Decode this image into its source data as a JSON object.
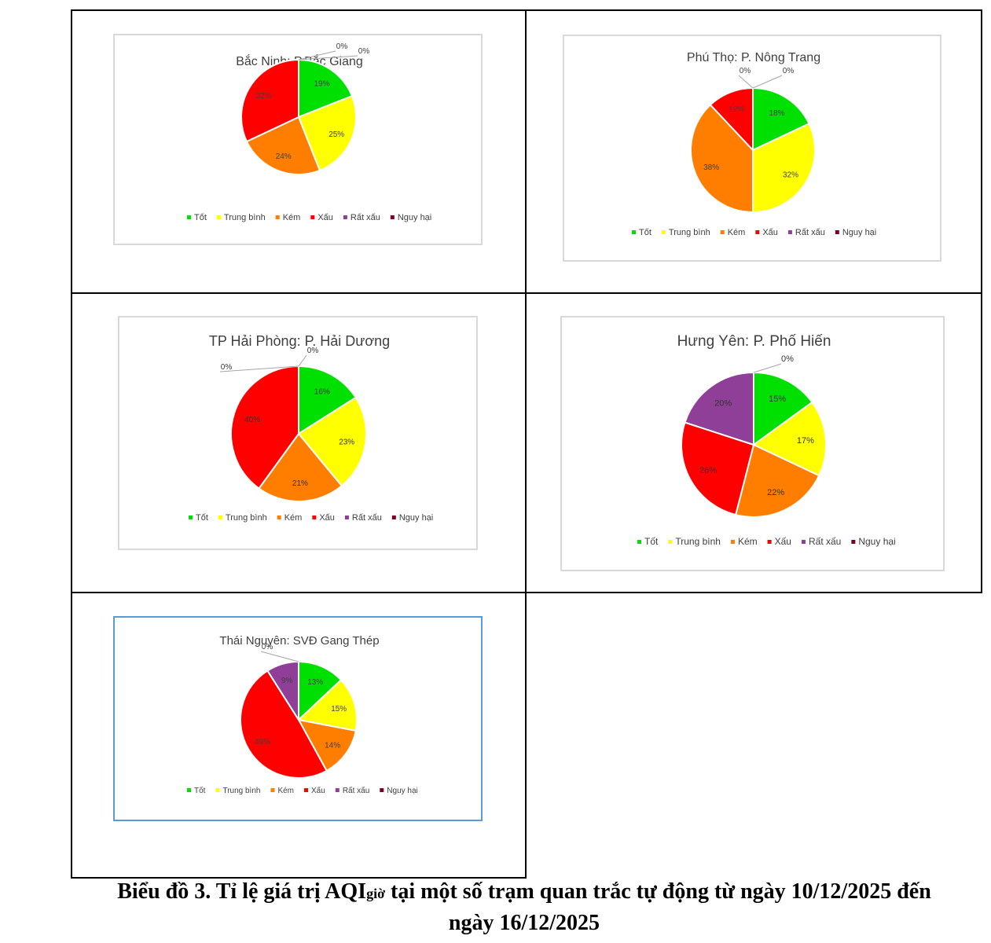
{
  "legend_labels": [
    "Tốt",
    "Trung bình",
    "Kém",
    "Xấu",
    "Rất xấu",
    "Nguy hại"
  ],
  "colors": {
    "tot": "#00e000",
    "trung_binh": "#ffff00",
    "kem": "#ff7e00",
    "xau": "#ff0000",
    "rat_xau": "#8f3f97",
    "nguy_hai": "#7e0023"
  },
  "caption": {
    "prefix": "Biểu đồ 3.  Tỉ lệ giá trị AQI",
    "subscript": "giờ",
    "suffix": " tại một số trạm quan trắc tự động từ ngày 10/12/2025 đến",
    "line2": "ngày 16/12/2025"
  },
  "chart_data": [
    {
      "type": "pie",
      "title": "Bắc Ninh: P.Bắc Giang",
      "categories": [
        "Tốt",
        "Trung bình",
        "Kém",
        "Xấu",
        "Rất xấu",
        "Nguy hại"
      ],
      "values": [
        19,
        25,
        24,
        32,
        0,
        0
      ],
      "data_labels": [
        "19%",
        "25%",
        "24%",
        "32%",
        "0%",
        "0%"
      ],
      "legend": "bottom"
    },
    {
      "type": "pie",
      "title": "Phú Thọ: P. Nông Trang",
      "categories": [
        "Tốt",
        "Trung bình",
        "Kém",
        "Xấu",
        "Rất xấu",
        "Nguy hại"
      ],
      "values": [
        18,
        32,
        38,
        12,
        0,
        0
      ],
      "data_labels": [
        "18%",
        "32%",
        "38%",
        "12%",
        "0%",
        "0%"
      ],
      "legend": "bottom"
    },
    {
      "type": "pie",
      "title": "TP Hải Phòng: P. Hải Dương",
      "categories": [
        "Tốt",
        "Trung bình",
        "Kém",
        "Xấu",
        "Rất xấu",
        "Nguy hại"
      ],
      "values": [
        16,
        23,
        21,
        40,
        0,
        0
      ],
      "data_labels": [
        "16%",
        "23%",
        "21%",
        "40%",
        "0%",
        "0%"
      ],
      "legend": "bottom"
    },
    {
      "type": "pie",
      "title": "Hưng Yên: P. Phố Hiến",
      "categories": [
        "Tốt",
        "Trung bình",
        "Kém",
        "Xấu",
        "Rất xấu",
        "Nguy hại"
      ],
      "values": [
        15,
        17,
        22,
        26,
        20,
        0
      ],
      "data_labels": [
        "15%",
        "17%",
        "22%",
        "26%",
        "20%",
        "0%"
      ],
      "legend": "bottom"
    },
    {
      "type": "pie",
      "title": "Thái Nguyên: SVĐ Gang Thép",
      "categories": [
        "Tốt",
        "Trung bình",
        "Kém",
        "Xấu",
        "Rất xấu",
        "Nguy hại"
      ],
      "values": [
        13,
        15,
        14,
        49,
        9,
        0
      ],
      "data_labels": [
        "13%",
        "15%",
        "14%",
        "49%",
        "9%",
        "0%"
      ],
      "legend": "bottom"
    }
  ]
}
